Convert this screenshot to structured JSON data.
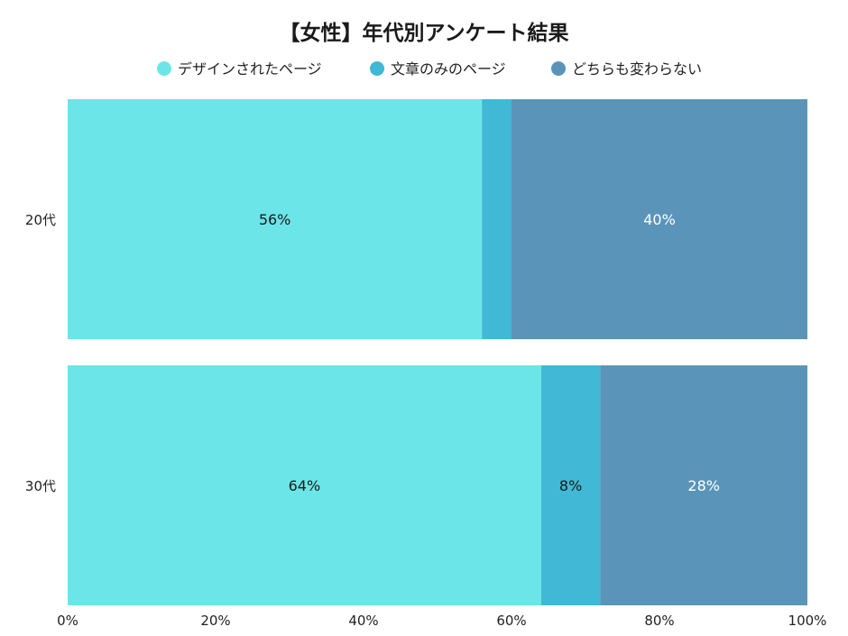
{
  "chart_data": {
    "type": "bar",
    "orientation": "horizontal",
    "stacked": true,
    "title": "【女性】年代別アンケート結果",
    "categories": [
      "20代",
      "30代"
    ],
    "series": [
      {
        "name": "デザインされたページ",
        "values": [
          56,
          64
        ],
        "labels": [
          "56%",
          "64%"
        ],
        "color": "#6ce5e8",
        "label_color": "#1a1a1a"
      },
      {
        "name": "文章のみのページ",
        "values": [
          4,
          8
        ],
        "labels": [
          "",
          "8%"
        ],
        "color": "#41b8d5",
        "label_color": "#1a1a1a"
      },
      {
        "name": "どちらも変わらない",
        "values": [
          40,
          28
        ],
        "labels": [
          "40%",
          "28%"
        ],
        "color": "#5a95b9",
        "label_color": "#ffffff"
      }
    ],
    "x_ticks": [
      "0%",
      "20%",
      "40%",
      "60%",
      "80%",
      "100%"
    ],
    "xlim": [
      0,
      100
    ],
    "xlabel": "",
    "ylabel": "",
    "grid": false,
    "legend_position": "top"
  }
}
